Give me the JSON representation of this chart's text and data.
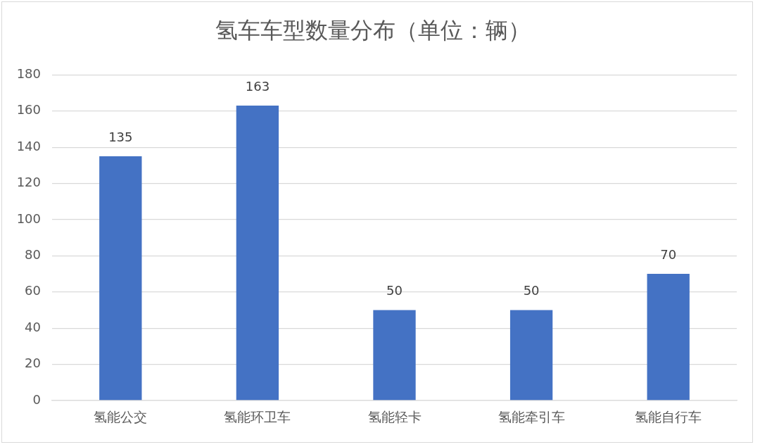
{
  "chart_data": {
    "type": "bar",
    "title": "氢车车型数量分布（单位：辆）",
    "categories": [
      "氢能公交",
      "氢能环卫车",
      "氢能轻卡",
      "氢能牵引车",
      "氢能自行车"
    ],
    "values": [
      135,
      163,
      50,
      50,
      70
    ],
    "color": "#4472c4",
    "ylim": [
      0,
      180
    ],
    "yticks": [
      0,
      20,
      40,
      60,
      80,
      100,
      120,
      140,
      160,
      180
    ],
    "grid": "y",
    "data_labels": true,
    "legend": false
  }
}
